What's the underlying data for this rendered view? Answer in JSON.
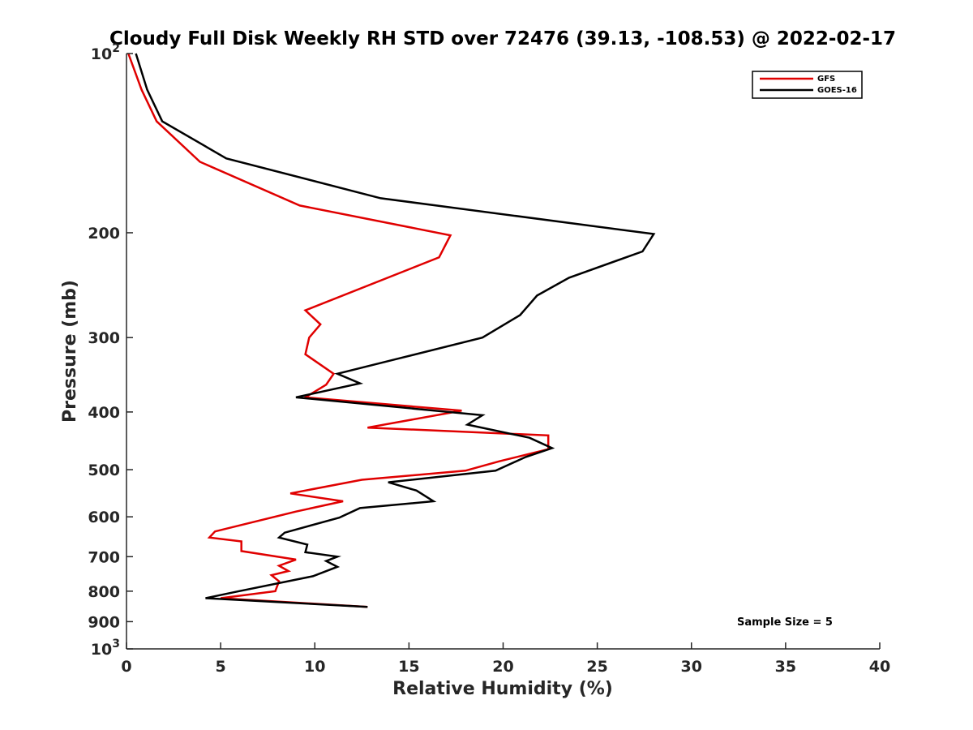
{
  "chart_data": {
    "type": "line",
    "title": "Cloudy Full Disk Weekly RH STD over 72476 (39.13, -108.53) @ 2022-02-17",
    "xlabel": "Relative Humidity (%)",
    "ylabel": "Pressure (mb)",
    "xlim": [
      0,
      40
    ],
    "ylim": [
      100,
      1000
    ],
    "y_scale": "log",
    "y_reversed": true,
    "grid": false,
    "legend_position": "top-right",
    "x_ticks": [
      "0",
      "5",
      "10",
      "15",
      "20",
      "25",
      "30",
      "35",
      "40"
    ],
    "y_ticks": [
      {
        "value": 100,
        "base": "10",
        "exp": "2"
      },
      {
        "value": 200,
        "label": "200"
      },
      {
        "value": 300,
        "label": "300"
      },
      {
        "value": 400,
        "label": "400"
      },
      {
        "value": 500,
        "label": "500"
      },
      {
        "value": 600,
        "label": "600"
      },
      {
        "value": 700,
        "label": "700"
      },
      {
        "value": 800,
        "label": "800"
      },
      {
        "value": 900,
        "label": "900"
      },
      {
        "value": 1000,
        "base": "10",
        "exp": "3"
      }
    ],
    "series": [
      {
        "name": "GFS",
        "color": "#e00000",
        "points": [
          [
            0.1,
            100
          ],
          [
            0.8,
            115
          ],
          [
            1.6,
            130
          ],
          [
            3.9,
            152
          ],
          [
            9.2,
            180
          ],
          [
            17.2,
            202
          ],
          [
            16.6,
            220
          ],
          [
            9.5,
            270
          ],
          [
            10.3,
            285
          ],
          [
            9.7,
            300
          ],
          [
            9.5,
            320
          ],
          [
            11.0,
            345
          ],
          [
            10.6,
            360
          ],
          [
            9.5,
            378
          ],
          [
            17.8,
            398
          ],
          [
            12.8,
            425
          ],
          [
            22.4,
            438
          ],
          [
            22.4,
            462
          ],
          [
            19.8,
            484
          ],
          [
            18.0,
            502
          ],
          [
            12.5,
            520
          ],
          [
            8.7,
            548
          ],
          [
            11.5,
            565
          ],
          [
            9.0,
            588
          ],
          [
            4.7,
            635
          ],
          [
            4.4,
            650
          ],
          [
            6.1,
            660
          ],
          [
            6.1,
            685
          ],
          [
            9.0,
            708
          ],
          [
            8.1,
            725
          ],
          [
            8.6,
            740
          ],
          [
            7.7,
            752
          ],
          [
            8.1,
            770
          ],
          [
            7.9,
            800
          ],
          [
            5.0,
            822
          ],
          [
            12.8,
            850
          ]
        ]
      },
      {
        "name": "GOES-16",
        "color": "#000000",
        "points": [
          [
            0.5,
            100
          ],
          [
            1.1,
            115
          ],
          [
            1.9,
            130
          ],
          [
            5.3,
            150
          ],
          [
            13.5,
            175
          ],
          [
            28.0,
            201
          ],
          [
            27.4,
            215
          ],
          [
            23.5,
            238
          ],
          [
            21.8,
            255
          ],
          [
            20.9,
            275
          ],
          [
            18.9,
            300
          ],
          [
            14.5,
            325
          ],
          [
            11.2,
            345
          ],
          [
            12.4,
            358
          ],
          [
            9.0,
            378
          ],
          [
            18.9,
            405
          ],
          [
            18.1,
            420
          ],
          [
            21.4,
            442
          ],
          [
            22.6,
            460
          ],
          [
            21.2,
            476
          ],
          [
            19.6,
            502
          ],
          [
            13.9,
            525
          ],
          [
            15.4,
            542
          ],
          [
            16.3,
            565
          ],
          [
            12.4,
            580
          ],
          [
            11.3,
            602
          ],
          [
            8.4,
            638
          ],
          [
            8.1,
            650
          ],
          [
            9.6,
            668
          ],
          [
            9.5,
            688
          ],
          [
            11.2,
            700
          ],
          [
            10.6,
            712
          ],
          [
            11.2,
            728
          ],
          [
            9.9,
            755
          ],
          [
            5.8,
            802
          ],
          [
            4.2,
            822
          ],
          [
            12.8,
            850
          ]
        ]
      }
    ],
    "annotations": [
      "Sample Size = 5"
    ]
  }
}
